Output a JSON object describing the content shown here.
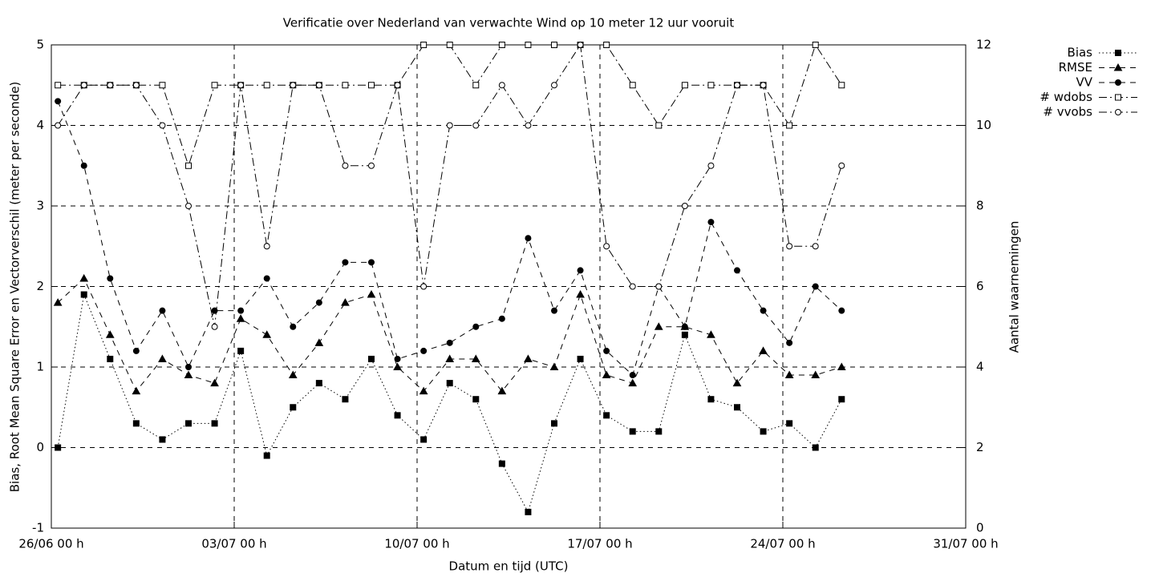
{
  "chart_data": {
    "type": "line",
    "title": "Verificatie over Nederland van verwachte Wind op 10 meter 12 uur vooruit",
    "xlabel": "Datum en tijd (UTC)",
    "ylabel": "Bias, Root Mean Square Error en Vectorverschil (meter per seconde)",
    "y2label": "Aantal waarnemingen",
    "x": [
      "26/06 06 h",
      "27/06 06 h",
      "28/06 06 h",
      "29/06 06 h",
      "30/06 06 h",
      "01/07 06 h",
      "02/07 06 h",
      "03/07 06 h",
      "04/07 06 h",
      "05/07 06 h",
      "06/07 06 h",
      "07/07 06 h",
      "08/07 06 h",
      "09/07 06 h",
      "10/07 06 h",
      "11/07 06 h",
      "12/07 06 h",
      "13/07 06 h",
      "14/07 06 h",
      "15/07 06 h",
      "16/07 06 h",
      "17/07 06 h",
      "18/07 06 h",
      "19/07 06 h",
      "20/07 06 h",
      "21/07 06 h",
      "22/07 06 h",
      "23/07 06 h",
      "24/07 06 h",
      "25/07 06 h",
      "26/07 06 h"
    ],
    "xlim": [
      "26/06 00 h",
      "31/07 00 h"
    ],
    "xticks": [
      "26/06 00 h",
      "03/07 00 h",
      "10/07 00 h",
      "17/07 00 h",
      "24/07 00 h",
      "31/07 00 h"
    ],
    "ylim": [
      -1,
      5
    ],
    "yticks": [
      -1,
      0,
      1,
      2,
      3,
      4,
      5
    ],
    "y2lim": [
      0,
      12
    ],
    "y2ticks": [
      0,
      2,
      4,
      6,
      8,
      10,
      12
    ],
    "grid": true,
    "legend": "top-right",
    "series": [
      {
        "name": "Bias",
        "color": "#000000",
        "dash": "dotted",
        "marker": "square-filled",
        "values": [
          0,
          1.9,
          1.1,
          0.3,
          0.1,
          0.3,
          0.3,
          1.2,
          -0.1,
          0.5,
          0.8,
          0.6,
          1.1,
          0.4,
          0.1,
          0.8,
          0.6,
          -0.2,
          -0.8,
          0.3,
          1.1,
          0.4,
          0.2,
          0.2,
          1.4,
          0.6,
          0.5,
          0.2,
          0.3,
          0,
          0.6
        ]
      },
      {
        "name": "RMSE",
        "color": "#000000",
        "dash": "dashed",
        "marker": "triangle-filled",
        "values": [
          1.8,
          2.1,
          1.4,
          0.7,
          1.1,
          0.9,
          0.8,
          1.6,
          1.4,
          0.9,
          1.3,
          1.8,
          1.9,
          1.0,
          0.7,
          1.1,
          1.1,
          0.7,
          1.1,
          1.0,
          1.9,
          0.9,
          0.8,
          1.5,
          1.5,
          1.4,
          0.8,
          1.2,
          0.9,
          0.9,
          1.0
        ]
      },
      {
        "name": "VV",
        "color": "#000000",
        "dash": "dashed",
        "marker": "circle-filled",
        "values": [
          4.3,
          3.5,
          2.1,
          1.2,
          1.7,
          1.0,
          1.7,
          1.7,
          2.1,
          1.5,
          1.8,
          2.3,
          2.3,
          1.1,
          1.2,
          1.3,
          1.5,
          1.6,
          2.6,
          1.7,
          2.2,
          1.2,
          0.9,
          2.0,
          1.5,
          2.8,
          2.2,
          1.7,
          1.3,
          2.0,
          1.7
        ]
      },
      {
        "name": "# wdobs",
        "color": "#000000",
        "dash": "dash-dot",
        "marker": "square-open",
        "axis": "y2",
        "values": [
          11,
          11,
          11,
          11,
          11,
          9,
          11,
          11,
          11,
          11,
          11,
          11,
          11,
          11,
          12,
          12,
          11,
          12,
          12,
          12,
          12,
          12,
          11,
          10,
          11,
          11,
          11,
          11,
          10,
          12,
          11
        ]
      },
      {
        "name": "# vvobs",
        "color": "#000000",
        "dash": "dash-dot",
        "marker": "circle-open",
        "axis": "y2",
        "values": [
          10,
          11,
          11,
          11,
          10,
          8,
          5,
          11,
          7,
          11,
          11,
          9,
          9,
          11,
          6,
          10,
          10,
          11,
          10,
          11,
          12,
          7,
          6,
          6,
          8,
          9,
          11,
          11,
          7,
          7,
          9
        ]
      }
    ]
  }
}
